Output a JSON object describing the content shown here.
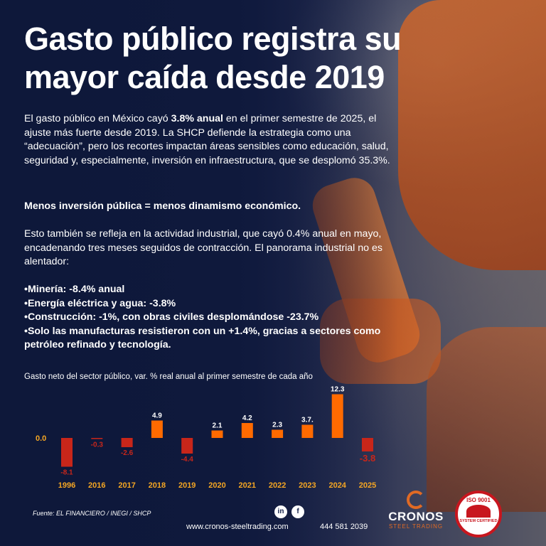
{
  "headline": {
    "line1": "Gasto público registra su",
    "line2": "mayor caída desde 2019"
  },
  "intro": {
    "t1": "El gasto público en México cayó ",
    "b1": "3.8% anual",
    "t2": " en el primer semestre de 2025, el ajuste más fuerte desde 2019. La SHCP defiende la estrategia como una “adecuación”, pero los recortes impactan áreas sensibles como educación, salud, seguridad y, especialmente, inversión en infraestructura, que se desplomó 35.3%."
  },
  "emphasis": "Menos inversión pública = menos dinamismo económico.",
  "industrial": "Esto también se refleja en la actividad industrial, que cayó 0.4% anual en mayo, encadenando tres meses seguidos de contracción. El panorama industrial no es alentador:",
  "bullets": [
    "Minería: -8.4% anual",
    "Energía eléctrica y agua: -3.8%",
    "Construcción: -1%, con obras civiles desplomándose -23.7%",
    "Solo las manufacturas resistieron con un +1.4%, gracias a sectores como petróleo refinado y tecnología."
  ],
  "chart_data": {
    "type": "bar",
    "title": "Gasto neto del sector público, var. % real anual al primer semestre de cada año",
    "categories": [
      "1996",
      "2016",
      "2017",
      "2018",
      "2019",
      "2020",
      "2021",
      "2022",
      "2023",
      "2024",
      "2025"
    ],
    "values": [
      -8.1,
      -0.3,
      -2.6,
      4.9,
      -4.4,
      2.1,
      4.2,
      2.3,
      3.7,
      12.3,
      -3.8
    ],
    "value_labels": [
      "-8.1",
      "-0.3",
      "-2.6",
      "4.9",
      "-4.4",
      "2.1",
      "4.2",
      "2.3",
      "3.7.",
      "12.3",
      "-3.8"
    ],
    "zero_label": "0.0",
    "ylim": [
      -9,
      13
    ],
    "colors": {
      "positive": "#ff6a00",
      "negative": "#c8261a",
      "tick": "#f5a623",
      "zero_label": "#f5a623"
    }
  },
  "footer": {
    "source": "Fuente: EL FINANCIERO / INEGI / SHCP",
    "linkedin_glyph": "in",
    "facebook_glyph": "f",
    "website": "www.cronos-steeltrading.com",
    "phone": "444 581 2039",
    "brand": "CRONOS",
    "brand_sub": "STEEL TRADING",
    "iso_top": "ISO 9001",
    "iso_bottom": "SYSTEM CERTIFIED"
  }
}
